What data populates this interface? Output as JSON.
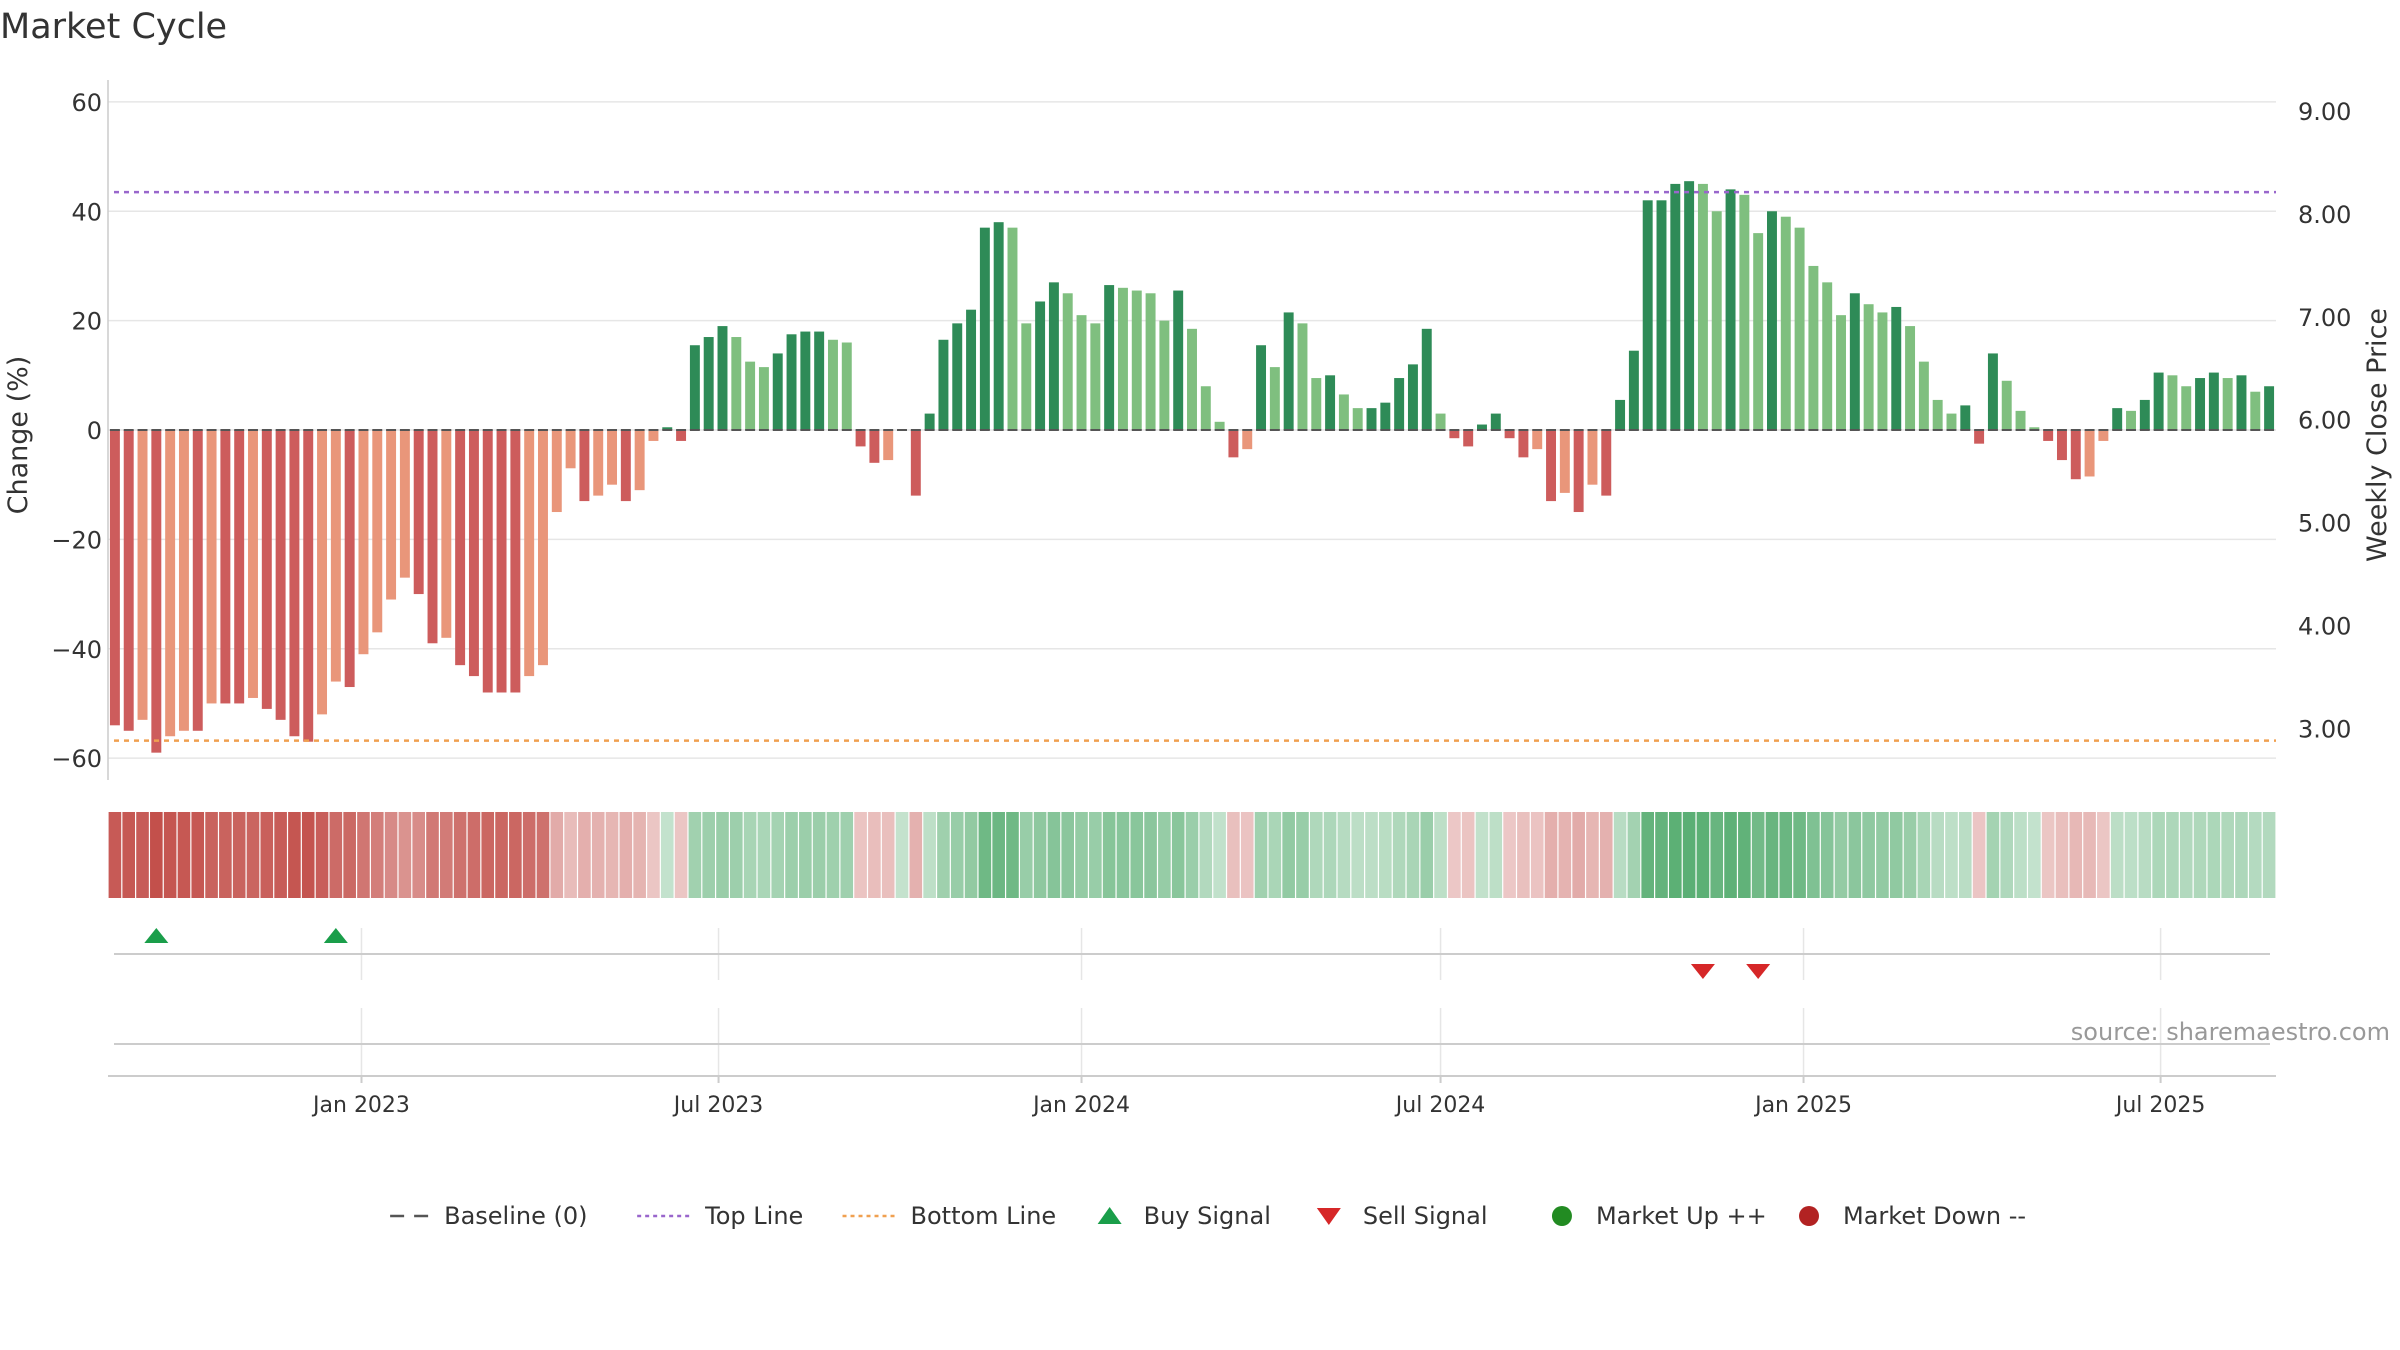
{
  "chart_data": {
    "type": "bar",
    "title": "Market Cycle",
    "ylabel_left": "Change (%)",
    "ylabel_right": "Weekly Close Price",
    "y_ticks": [
      "60",
      "40",
      "20",
      "0",
      "−20",
      "−40",
      "−60"
    ],
    "y_ticks_right": [
      "9.00",
      "8.00",
      "7.00",
      "6.00",
      "5.00",
      "4.00",
      "3.00"
    ],
    "x_ticks": [
      "Jan 2023",
      "Jul 2023",
      "Jan 2024",
      "Jul 2024",
      "Jan 2025",
      "Jul 2025"
    ],
    "ylim": [
      -64,
      64
    ],
    "ylim_right": [
      2.5,
      9.3
    ],
    "top_line": 43.5,
    "bottom_line": -56.8,
    "baseline": 0,
    "start_date": "2022-08-29",
    "week_interval_days": 7,
    "values": [
      -54,
      -55,
      -53,
      -59,
      -56,
      -55,
      -55,
      -50,
      -50,
      -50,
      -49,
      -51,
      -53,
      -56,
      -57,
      -52,
      -46,
      -47,
      -41,
      -37,
      -31,
      -27,
      -30,
      -39,
      -38,
      -43,
      -45,
      -48,
      -48,
      -48,
      -45,
      -43,
      -15,
      -7,
      -13,
      -12,
      -10,
      -13,
      -11,
      -2,
      0.5,
      -2,
      15.5,
      17,
      19,
      17,
      12.5,
      11.5,
      14,
      17.5,
      18,
      18,
      16.5,
      16,
      -3,
      -6,
      -5.5,
      0,
      -12,
      3,
      16.5,
      19.5,
      22,
      37,
      38,
      37,
      19.5,
      23.5,
      27,
      25,
      21,
      19.5,
      26.5,
      26,
      25.5,
      25,
      20,
      25.5,
      18.5,
      8,
      1.5,
      -5,
      -3.5,
      15.5,
      11.5,
      21.5,
      19.5,
      9.5,
      10,
      6.5,
      4,
      4,
      5,
      9.5,
      12,
      18.5,
      3,
      -1.5,
      -3,
      1,
      3,
      -1.5,
      -5,
      -3.5,
      -13,
      -11.5,
      -15,
      -10,
      -12,
      5.5,
      14.5,
      42,
      42,
      45,
      45.5,
      45,
      40,
      44,
      43,
      36,
      40,
      39,
      37,
      30,
      27,
      21,
      25,
      23,
      21.5,
      22.5,
      19,
      12.5,
      5.5,
      3,
      4.5,
      -2.5,
      14,
      9,
      3.5,
      0.5,
      -2,
      -5.5,
      -9,
      -8.5,
      -2,
      4,
      3.5,
      5.5,
      10.5,
      10,
      8,
      9.5,
      10.5,
      9.5,
      10,
      7,
      8
    ],
    "buy_signals": [
      "2022-09-19",
      "2022-12-19"
    ],
    "sell_signals": [
      "2024-11-11",
      "2024-12-09"
    ],
    "source_text": "source: sharemaestro.com",
    "legend": [
      {
        "label": "Baseline (0)",
        "marker": "dash-line"
      },
      {
        "label": "Top Line",
        "marker": "dotted-line"
      },
      {
        "label": "Bottom Line",
        "marker": "dotted-line"
      },
      {
        "label": "Buy Signal",
        "marker": "triangle-up"
      },
      {
        "label": "Sell Signal",
        "marker": "triangle-down"
      },
      {
        "label": "Market Up ++",
        "marker": "circle"
      },
      {
        "label": "Market Down --",
        "marker": "circle"
      }
    ],
    "legend_placement": "bottom",
    "grid": true,
    "colors": {
      "strong_up": "#2e8b57",
      "up": "#7fbf7f",
      "strong_down": "#cd5c5c",
      "down": "#e9967a",
      "top_line": "#9966cc",
      "bottom_line": "#f0a050",
      "baseline": "#555555",
      "buy": "#1a9e4a",
      "sell": "#d62728",
      "market_up": "#228b22",
      "market_down": "#b22222"
    }
  }
}
